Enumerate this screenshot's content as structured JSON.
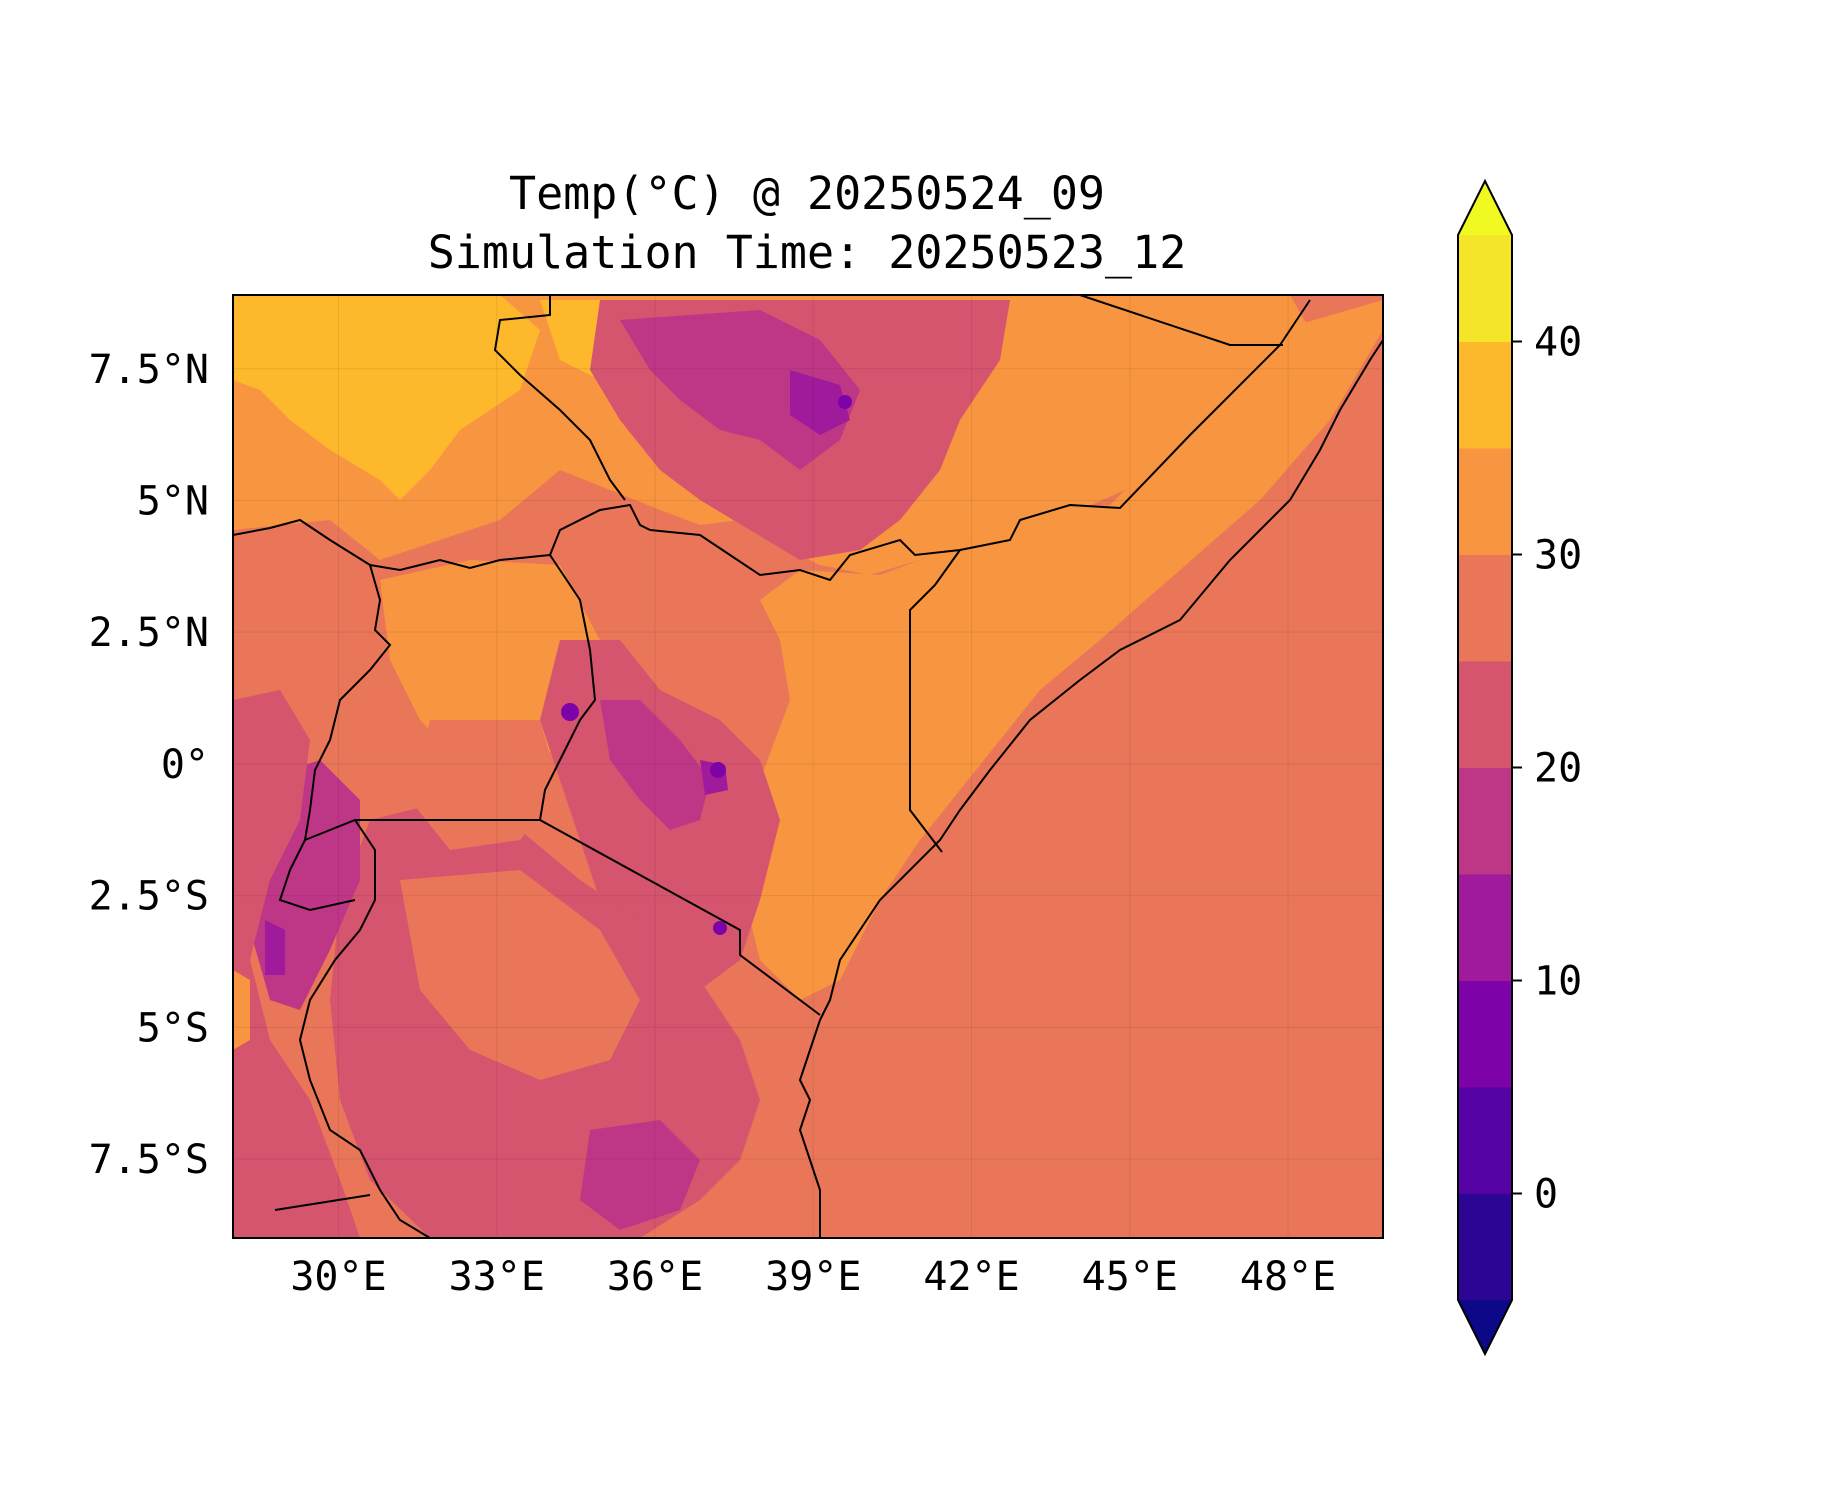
{
  "map": {
    "title_line1": "Temp(°C) @ 20250524_09",
    "title_line2": "Simulation Time: 20250523_12",
    "extent": {
      "lon_min": 28.0,
      "lon_max": 49.8,
      "lat_min": -9.0,
      "lat_max": 8.9
    },
    "x_ticks": [
      {
        "lon": 30,
        "label": "30°E"
      },
      {
        "lon": 33,
        "label": "33°E"
      },
      {
        "lon": 36,
        "label": "36°E"
      },
      {
        "lon": 39,
        "label": "39°E"
      },
      {
        "lon": 42,
        "label": "42°E"
      },
      {
        "lon": 45,
        "label": "45°E"
      },
      {
        "lon": 48,
        "label": "48°E"
      }
    ],
    "y_ticks": [
      {
        "lat": 7.5,
        "label": "7.5°N"
      },
      {
        "lat": 5,
        "label": "5°N"
      },
      {
        "lat": 2.5,
        "label": "2.5°N"
      },
      {
        "lat": 0,
        "label": "0°"
      },
      {
        "lat": -2.5,
        "label": "2.5°S"
      },
      {
        "lat": -5,
        "label": "5°S"
      },
      {
        "lat": -7.5,
        "label": "7.5°S"
      }
    ],
    "ocean_color": "#e97658"
  },
  "colorbar": {
    "levels": [
      -5,
      0,
      5,
      10,
      15,
      20,
      25,
      30,
      35,
      40,
      45
    ],
    "colors": [
      "#2d0594",
      "#5502a4",
      "#7d03a8",
      "#a01a9c",
      "#bd3786",
      "#d5546e",
      "#e97658",
      "#f89540",
      "#feb82c",
      "#f4e529"
    ],
    "under_color": "#0d0887",
    "over_color": "#f0f921",
    "ticks": [
      {
        "value": 0,
        "label": "0"
      },
      {
        "value": 10,
        "label": "10"
      },
      {
        "value": 20,
        "label": "20"
      },
      {
        "value": 30,
        "label": "30"
      },
      {
        "value": 40,
        "label": "40"
      }
    ]
  }
}
